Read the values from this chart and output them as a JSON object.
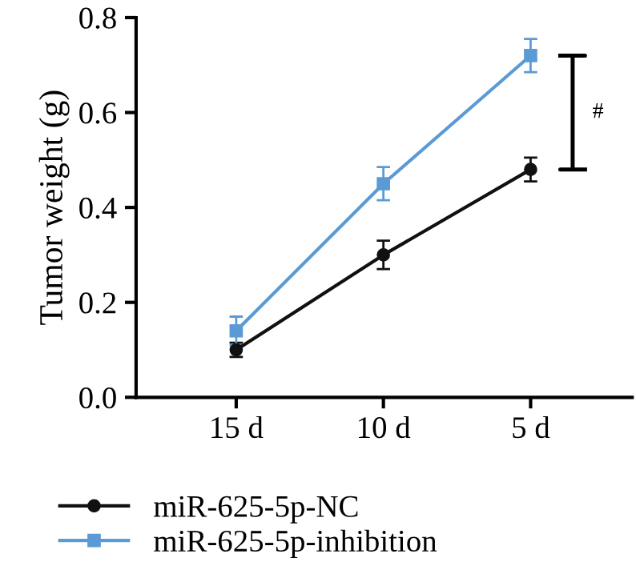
{
  "chart_data": {
    "type": "line",
    "ylabel": "Tumor weight (g)",
    "categories": [
      "15 d",
      "10 d",
      "5 d"
    ],
    "series": [
      {
        "name": "miR-625-5p-NC",
        "color": "#111111",
        "marker": "circle",
        "values": [
          0.1,
          0.3,
          0.48
        ],
        "errors": [
          0.015,
          0.03,
          0.025
        ]
      },
      {
        "name": "miR-625-5p-inhibition",
        "color": "#5b9bd5",
        "marker": "square",
        "values": [
          0.14,
          0.45,
          0.72
        ],
        "errors": [
          0.03,
          0.035,
          0.035
        ]
      }
    ],
    "ylim": [
      0,
      0.8
    ],
    "yticks": [
      {
        "value": 0,
        "label": "0.0"
      },
      0.2,
      0.4,
      0.6,
      0.8
    ],
    "annotations": [
      "#"
    ],
    "grid": false,
    "legend": "bottom"
  }
}
